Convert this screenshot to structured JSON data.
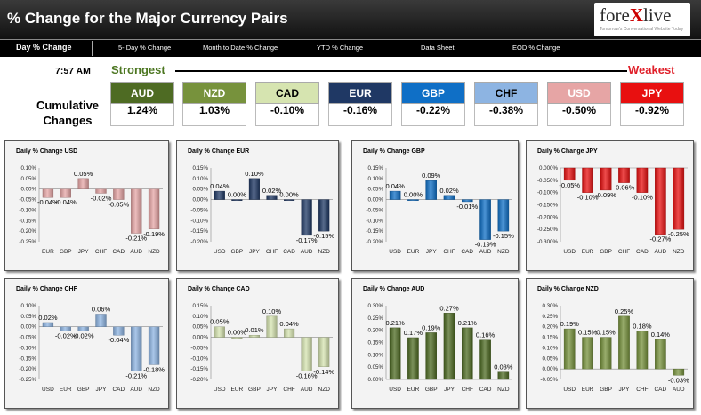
{
  "header": {
    "title": "% Change for the Major Currency Pairs",
    "logo": {
      "pre": "fore",
      "x": "X",
      "post": "live",
      "tagline": "Tomorrow's Conversational Website Today"
    }
  },
  "nav": [
    "Day % Change",
    "5- Day % Change",
    "Month to Date % Change",
    "YTD % Change",
    "Data Sheet",
    "EOD % Change"
  ],
  "summary": {
    "time": "7:57 AM",
    "strongest_label": "Strongest",
    "weakest_label": "Weakest",
    "cumulative_label": "Cumulative Changes",
    "currencies": [
      {
        "code": "AUD",
        "value": "1.24%",
        "color": "#4e6b23"
      },
      {
        "code": "NZD",
        "value": "1.03%",
        "color": "#77923c"
      },
      {
        "code": "CAD",
        "value": "-0.10%",
        "color": "#d6e4b0"
      },
      {
        "code": "EUR",
        "value": "-0.16%",
        "color": "#1f3864"
      },
      {
        "code": "GBP",
        "value": "-0.22%",
        "color": "#0f6fc6"
      },
      {
        "code": "CHF",
        "value": "-0.38%",
        "color": "#8db4e2"
      },
      {
        "code": "USD",
        "value": "-0.50%",
        "color": "#e6a5a5"
      },
      {
        "code": "JPY",
        "value": "-0.92%",
        "color": "#e81010"
      }
    ]
  },
  "chart_data": [
    {
      "type": "bar",
      "title": "Daily % Change USD",
      "color": "#e6a5a5",
      "ylim": [
        -0.25,
        0.1
      ],
      "step": 0.05,
      "decimals": 2,
      "categories": [
        "EUR",
        "GBP",
        "JPY",
        "CHF",
        "CAD",
        "AUD",
        "NZD"
      ],
      "values": [
        -0.04,
        -0.04,
        0.05,
        -0.02,
        -0.05,
        -0.21,
        -0.19
      ],
      "labels": [
        "-0.04%",
        "-0.04%",
        "0.05%",
        "-0.02%",
        "-0.05%",
        "-0.21%",
        "-0.19%"
      ]
    },
    {
      "type": "bar",
      "title": "Daily % Change EUR",
      "color": "#1f3864",
      "ylim": [
        -0.2,
        0.15
      ],
      "step": 0.05,
      "decimals": 2,
      "categories": [
        "USD",
        "GBP",
        "JPY",
        "CHF",
        "CAD",
        "AUD",
        "NZD"
      ],
      "values": [
        0.04,
        0.0,
        0.1,
        0.02,
        0.0,
        -0.17,
        -0.15
      ],
      "labels": [
        "0.04%",
        "0.00%",
        "0.10%",
        "0.02%",
        "0.00%",
        "-0.17%",
        "-0.15%"
      ]
    },
    {
      "type": "bar",
      "title": "Daily % Change GBP",
      "color": "#0f6fc6",
      "ylim": [
        -0.2,
        0.15
      ],
      "step": 0.05,
      "decimals": 2,
      "categories": [
        "USD",
        "EUR",
        "JPY",
        "CHF",
        "CAD",
        "AUD",
        "NZD"
      ],
      "values": [
        0.04,
        0.0,
        0.09,
        0.02,
        -0.01,
        -0.19,
        -0.15
      ],
      "labels": [
        "0.04%",
        "0.00%",
        "0.09%",
        "0.02%",
        "-0.01%",
        "-0.19%",
        "-0.15%"
      ]
    },
    {
      "type": "bar",
      "title": "Daily % Change JPY",
      "color": "#e81010",
      "ylim": [
        -0.3,
        0.0
      ],
      "step": 0.05,
      "decimals": 3,
      "categories": [
        "USD",
        "EUR",
        "GBP",
        "CHF",
        "CAD",
        "AUD",
        "NZD"
      ],
      "values": [
        -0.05,
        -0.1,
        -0.09,
        -0.06,
        -0.1,
        -0.27,
        -0.25
      ],
      "labels": [
        "-0.05%",
        "-0.10%",
        "-0.09%",
        "-0.06%",
        "-0.10%",
        "-0.27%",
        "-0.25%"
      ]
    },
    {
      "type": "bar",
      "title": "Daily % Change CHF",
      "color": "#8db4e2",
      "ylim": [
        -0.25,
        0.1
      ],
      "step": 0.05,
      "decimals": 2,
      "categories": [
        "USD",
        "EUR",
        "GBP",
        "JPY",
        "CAD",
        "AUD",
        "NZD"
      ],
      "values": [
        0.02,
        -0.02,
        -0.02,
        0.06,
        -0.04,
        -0.21,
        -0.18
      ],
      "labels": [
        "0.02%",
        "-0.02%",
        "-0.02%",
        "0.06%",
        "-0.04%",
        "-0.21%",
        "-0.18%"
      ]
    },
    {
      "type": "bar",
      "title": "Daily % Change CAD",
      "color": "#d6e4b0",
      "ylim": [
        -0.2,
        0.15
      ],
      "step": 0.05,
      "decimals": 2,
      "categories": [
        "USD",
        "EUR",
        "GBP",
        "JPY",
        "CHF",
        "AUD",
        "NZD"
      ],
      "values": [
        0.05,
        0.0,
        0.01,
        0.1,
        0.04,
        -0.16,
        -0.14
      ],
      "labels": [
        "0.05%",
        "0.00%",
        "0.01%",
        "0.10%",
        "0.04%",
        "-0.16%",
        "-0.14%"
      ]
    },
    {
      "type": "bar",
      "title": "Daily % Change AUD",
      "color": "#4e6b23",
      "ylim": [
        0.0,
        0.3
      ],
      "step": 0.05,
      "decimals": 2,
      "categories": [
        "USD",
        "EUR",
        "GBP",
        "JPY",
        "CHF",
        "CAD",
        "NZD"
      ],
      "values": [
        0.21,
        0.17,
        0.19,
        0.27,
        0.21,
        0.16,
        0.03
      ],
      "labels": [
        "0.21%",
        "0.17%",
        "0.19%",
        "0.27%",
        "0.21%",
        "0.16%",
        "0.03%"
      ]
    },
    {
      "type": "bar",
      "title": "Daily % Change NZD",
      "color": "#77923c",
      "ylim": [
        -0.05,
        0.3
      ],
      "step": 0.05,
      "decimals": 2,
      "categories": [
        "USD",
        "EUR",
        "GBP",
        "JPY",
        "CHF",
        "CAD",
        "AUD"
      ],
      "values": [
        0.19,
        0.15,
        0.15,
        0.25,
        0.18,
        0.14,
        -0.03
      ],
      "labels": [
        "0.19%",
        "0.15%",
        "0.15%",
        "0.25%",
        "0.18%",
        "0.14%",
        "-0.03%"
      ]
    }
  ]
}
